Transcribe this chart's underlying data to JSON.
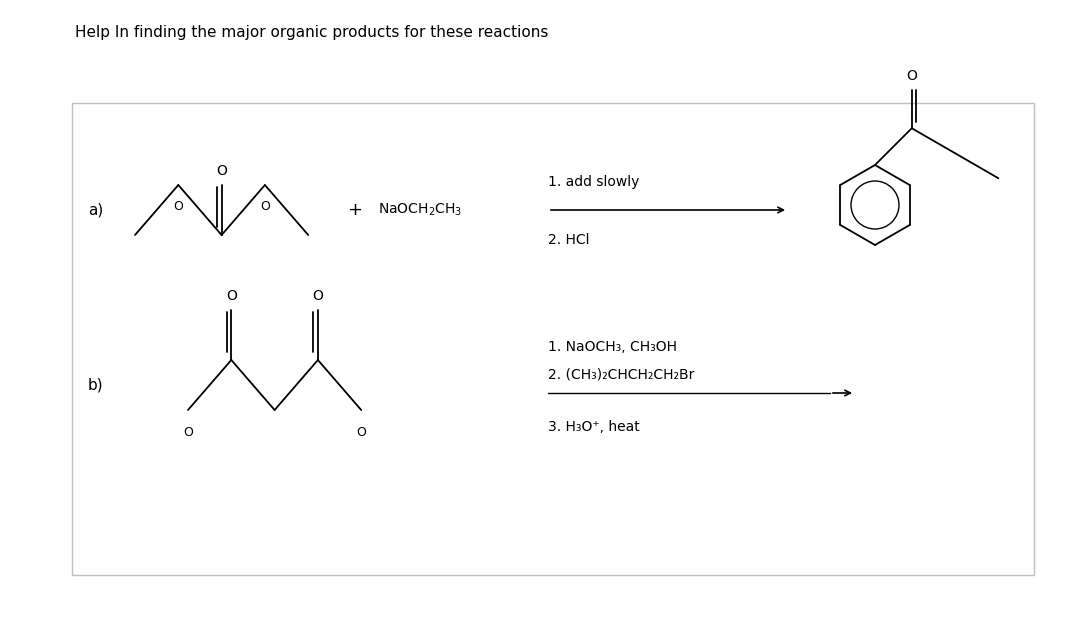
{
  "title": "Help In finding the major organic products for these reactions",
  "bg_color": "#ffffff",
  "box_color": "#cccccc",
  "label_a": "a)",
  "label_b": "b)",
  "reagent_a": "+ NaOCH₂CH₃",
  "conditions_a_line1": "1. add slowly",
  "conditions_a_line2": "2. HCl",
  "conditions_b_line1": "1. NaOCH₃, CH₃OH",
  "conditions_b_line2": "2. (CH₃)₂CHCH₂CH₂Br",
  "conditions_b_line3": "3. H₃O⁺, heat",
  "text_fontsize": 10,
  "small_fontsize": 9
}
